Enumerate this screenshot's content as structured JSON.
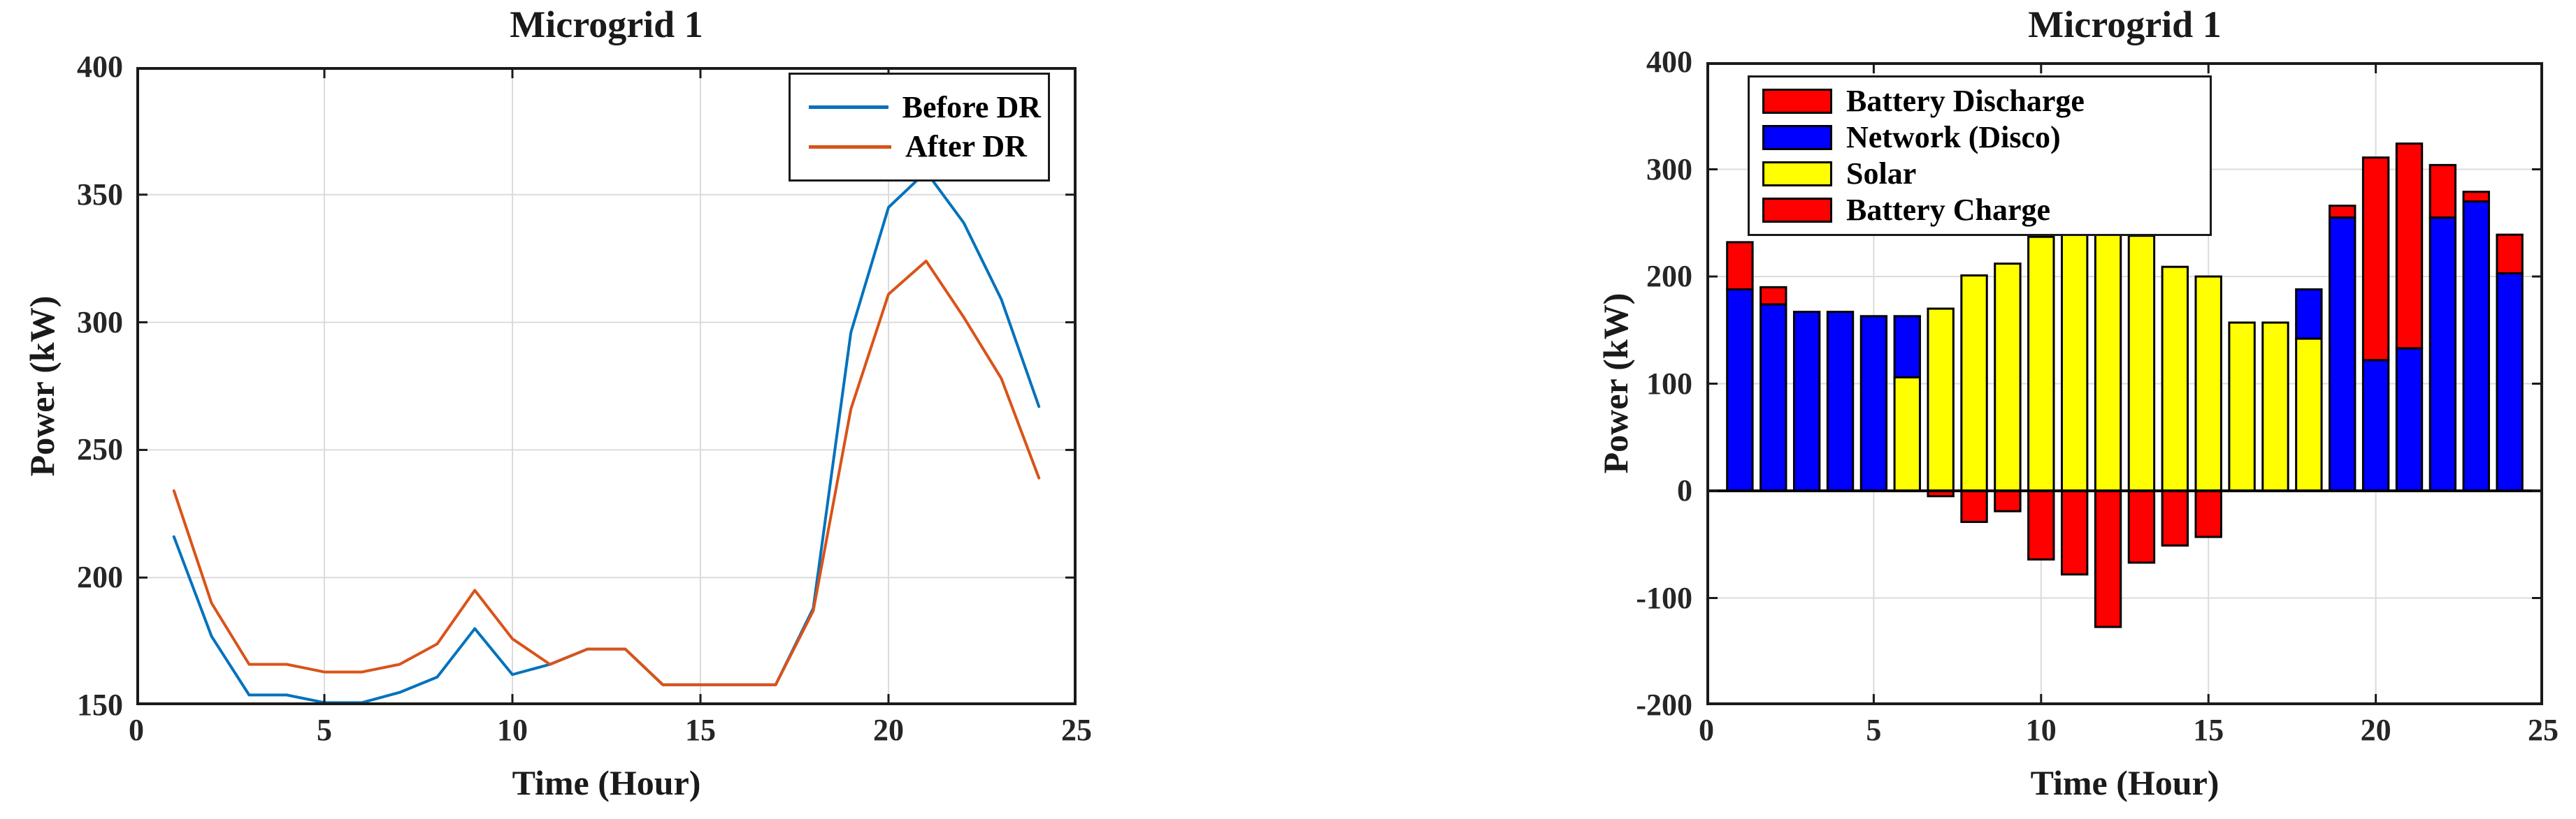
{
  "style": {
    "background": "#FFFFFF",
    "axis_color": "#1A1A1A",
    "grid_color": "#DBDBDB",
    "text_color": "#262626",
    "bar_edge_color": "#000000",
    "zero_line_color": "#000000"
  },
  "chart_data": [
    {
      "type": "line",
      "title": "Microgrid 1",
      "xlabel": "Time (Hour)",
      "ylabel": "Power (kW)",
      "xlim": [
        0,
        25
      ],
      "ylim": [
        150,
        400
      ],
      "xticks": [
        0,
        5,
        10,
        15,
        20,
        25
      ],
      "yticks": [
        150,
        200,
        250,
        300,
        350,
        400
      ],
      "grid": true,
      "x": [
        1,
        2,
        3,
        4,
        5,
        6,
        7,
        8,
        9,
        10,
        11,
        12,
        13,
        14,
        15,
        16,
        17,
        18,
        19,
        20,
        21,
        22,
        23,
        24
      ],
      "series": [
        {
          "name": "Before DR",
          "color": "#0072BD",
          "values": [
            216,
            177,
            154,
            154,
            151,
            151,
            155,
            161,
            180,
            162,
            166,
            172,
            172,
            158,
            158,
            158,
            158,
            188,
            296,
            345,
            359,
            339,
            309,
            267
          ]
        },
        {
          "name": "After DR",
          "color": "#D95319",
          "values": [
            234,
            190,
            166,
            166,
            163,
            163,
            166,
            174,
            195,
            176,
            166,
            172,
            172,
            158,
            158,
            158,
            158,
            187,
            266,
            311,
            324,
            302,
            278,
            239
          ]
        }
      ],
      "legend": {
        "position": "top-right",
        "swatch": "line",
        "items": [
          {
            "label": "Before DR",
            "color": "#0072BD"
          },
          {
            "label": "After DR",
            "color": "#D95319"
          }
        ]
      }
    },
    {
      "type": "stacked-bar",
      "title": "Microgrid 1",
      "xlabel": "Time (Hour)",
      "ylabel": "Power (kW)",
      "xlim": [
        0,
        25
      ],
      "ylim": [
        -200,
        400
      ],
      "xticks": [
        0,
        5,
        10,
        15,
        20,
        25
      ],
      "yticks": [
        -200,
        -100,
        0,
        100,
        200,
        300,
        400
      ],
      "grid": true,
      "x": [
        1,
        2,
        3,
        4,
        5,
        6,
        7,
        8,
        9,
        10,
        11,
        12,
        13,
        14,
        15,
        16,
        17,
        18,
        19,
        20,
        21,
        22,
        23,
        24
      ],
      "series": [
        {
          "name": "Solar",
          "color": "#FFFF00",
          "values": [
            0,
            0,
            0,
            0,
            0,
            106,
            170,
            201,
            212,
            237,
            242,
            298,
            238,
            209,
            200,
            157,
            157,
            142,
            0,
            0,
            0,
            0,
            0,
            0
          ]
        },
        {
          "name": "Network (Disco)",
          "color": "#0000FF",
          "values": [
            188,
            174,
            167,
            167,
            163,
            57,
            0,
            0,
            0,
            0,
            0,
            0,
            0,
            0,
            0,
            0,
            0,
            46,
            255,
            122,
            133,
            255,
            270,
            203
          ]
        },
        {
          "name": "Battery Discharge",
          "color": "#FF0000",
          "values": [
            44,
            16,
            0,
            0,
            0,
            0,
            0,
            0,
            0,
            0,
            0,
            0,
            0,
            0,
            0,
            0,
            0,
            0,
            11,
            189,
            191,
            49,
            9,
            36
          ]
        },
        {
          "name": "Battery Charge",
          "color": "#FF0000",
          "values": [
            0,
            0,
            0,
            0,
            0,
            0,
            -5,
            -29,
            -19,
            -64,
            -78,
            -127,
            -67,
            -51,
            -43,
            0,
            0,
            0,
            0,
            0,
            0,
            0,
            0,
            0
          ]
        }
      ],
      "legend": {
        "position": "top-left",
        "swatch": "box",
        "items": [
          {
            "label": "Battery Discharge",
            "color": "#FF0000"
          },
          {
            "label": "Network (Disco)",
            "color": "#0000FF"
          },
          {
            "label": "Solar",
            "color": "#FFFF00"
          },
          {
            "label": "Battery Charge",
            "color": "#FF0000"
          }
        ]
      }
    }
  ]
}
